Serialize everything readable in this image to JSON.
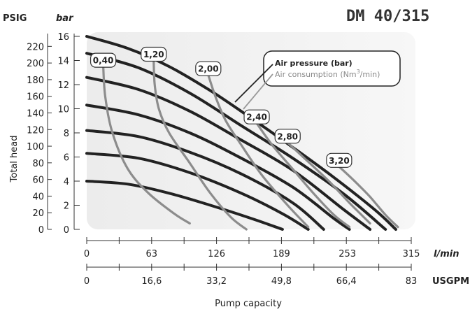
{
  "chart_data": {
    "type": "line",
    "title": "DM 40/315",
    "ylabel": "Total head",
    "xlabel": "Pump capacity",
    "y_units": {
      "psig": "PSIG",
      "bar": "bar"
    },
    "x_units": {
      "lmin": "l/min",
      "usgpm": "USGPM"
    },
    "xlim": [
      0,
      315
    ],
    "ylim": [
      0,
      16
    ],
    "ticks": {
      "bar": [
        "0",
        "2",
        "4",
        "6",
        "8",
        "10",
        "12",
        "14",
        "16"
      ],
      "bar_values": [
        0,
        2,
        4,
        6,
        8,
        10,
        12,
        14,
        16
      ],
      "psig": [
        "0",
        "20",
        "40",
        "60",
        "80",
        "100",
        "120",
        "140",
        "160",
        "180",
        "200",
        "220"
      ],
      "psig_values": [
        0,
        20,
        40,
        60,
        80,
        100,
        120,
        140,
        160,
        180,
        200,
        220
      ],
      "lmin": [
        "0",
        "63",
        "126",
        "189",
        "253",
        "315"
      ],
      "lmin_values": [
        0,
        63,
        126,
        189,
        253,
        315
      ],
      "usgpm": [
        "0",
        "16,6",
        "33,2",
        "49,8",
        "66,4",
        "83"
      ],
      "usgpm_values": [
        0,
        16.6,
        33.2,
        49.8,
        66.4,
        83
      ]
    },
    "legend": {
      "pressure": "Air pressure (bar)",
      "consumption_prefix": "Air consumption (Nm",
      "consumption_sup": "3",
      "consumption_suffix": "/min)"
    },
    "pressure_series": [
      {
        "values": [
          [
            0,
            4
          ],
          [
            40,
            3.75
          ],
          [
            80,
            3.0
          ],
          [
            120,
            2.0
          ],
          [
            160,
            0.9
          ],
          [
            190,
            0
          ]
        ]
      },
      {
        "values": [
          [
            0,
            6.3
          ],
          [
            50,
            5.9
          ],
          [
            100,
            4.7
          ],
          [
            150,
            3.0
          ],
          [
            190,
            1.3
          ],
          [
            215,
            0
          ]
        ]
      },
      {
        "values": [
          [
            0,
            8.2
          ],
          [
            50,
            7.7
          ],
          [
            100,
            6.4
          ],
          [
            150,
            4.6
          ],
          [
            200,
            2.2
          ],
          [
            230,
            0
          ]
        ]
      },
      {
        "values": [
          [
            0,
            10.3
          ],
          [
            50,
            9.5
          ],
          [
            100,
            8.0
          ],
          [
            150,
            5.9
          ],
          [
            200,
            3.5
          ],
          [
            240,
            0.9
          ],
          [
            255,
            0
          ]
        ]
      },
      {
        "values": [
          [
            0,
            12.6
          ],
          [
            50,
            11.6
          ],
          [
            100,
            9.8
          ],
          [
            150,
            7.4
          ],
          [
            200,
            4.9
          ],
          [
            250,
            1.6
          ],
          [
            275,
            0
          ]
        ]
      },
      {
        "values": [
          [
            0,
            14.6
          ],
          [
            50,
            13.4
          ],
          [
            100,
            11.3
          ],
          [
            150,
            8.6
          ],
          [
            200,
            5.9
          ],
          [
            250,
            2.9
          ],
          [
            290,
            0
          ]
        ]
      },
      {
        "values": [
          [
            0,
            16.0
          ],
          [
            40,
            15.0
          ],
          [
            80,
            13.5
          ],
          [
            120,
            11.5
          ],
          [
            160,
            9.2
          ],
          [
            200,
            6.8
          ],
          [
            240,
            4.3
          ],
          [
            280,
            1.6
          ],
          [
            300,
            0
          ]
        ]
      }
    ],
    "consumption_series": [
      {
        "name": "0,40",
        "values": [
          [
            16,
            13.5
          ],
          [
            18,
            11
          ],
          [
            25,
            8
          ],
          [
            40,
            5
          ],
          [
            60,
            3
          ],
          [
            85,
            1.3
          ],
          [
            100,
            0.5
          ]
        ]
      },
      {
        "name": "1,20",
        "values": [
          [
            65,
            14
          ],
          [
            66,
            12
          ],
          [
            70,
            10
          ],
          [
            80,
            8
          ],
          [
            100,
            5.5
          ],
          [
            120,
            3
          ],
          [
            140,
            1
          ],
          [
            155,
            0
          ]
        ]
      },
      {
        "name": "2,00",
        "values": [
          [
            118,
            12.8
          ],
          [
            125,
            11
          ],
          [
            135,
            9
          ],
          [
            150,
            7
          ],
          [
            170,
            4.5
          ],
          [
            195,
            2
          ],
          [
            215,
            0.2
          ]
        ]
      },
      {
        "name": "2,40",
        "values": [
          [
            165,
            8.8
          ],
          [
            180,
            7
          ],
          [
            200,
            5
          ],
          [
            220,
            3
          ],
          [
            240,
            1.2
          ],
          [
            255,
            0.2
          ]
        ]
      },
      {
        "name": "2,80",
        "values": [
          [
            195,
            7.2
          ],
          [
            210,
            6
          ],
          [
            235,
            4
          ],
          [
            255,
            2.2
          ],
          [
            275,
            0.5
          ]
        ]
      },
      {
        "name": "3,20",
        "values": [
          [
            245,
            5.2
          ],
          [
            260,
            4
          ],
          [
            275,
            2.7
          ],
          [
            290,
            1.2
          ],
          [
            302,
            0.2
          ]
        ]
      }
    ],
    "point_labels": [
      "0,40",
      "1,20",
      "2,00",
      "2,40",
      "2,80",
      "3,20"
    ]
  }
}
